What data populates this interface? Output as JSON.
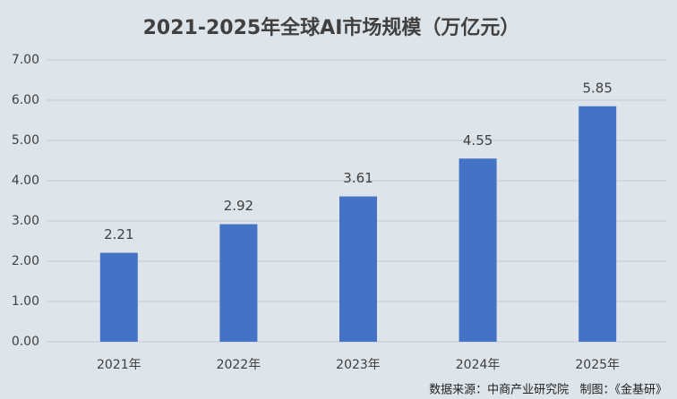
{
  "chart_data": {
    "type": "bar",
    "title": "2021-2025年全球AI市场规模（万亿元）",
    "categories": [
      "2021年",
      "2022年",
      "2023年",
      "2024年",
      "2025年"
    ],
    "values": [
      2.21,
      2.92,
      3.61,
      4.55,
      5.85
    ],
    "color": "#4472c4",
    "ylim": [
      0,
      7
    ],
    "yticks": [
      {
        "value": 0,
        "label": "0.00"
      },
      {
        "value": 1,
        "label": "1.00"
      },
      {
        "value": 2,
        "label": "2.00"
      },
      {
        "value": 3,
        "label": "3.00"
      },
      {
        "value": 4,
        "label": "4.00"
      },
      {
        "value": 5,
        "label": "5.00"
      },
      {
        "value": 6,
        "label": "6.00"
      },
      {
        "value": 7,
        "label": "7.00"
      }
    ],
    "grid": true,
    "data_labels": true,
    "source": "数据来源：中商产业研究院   制图：《金基研》"
  }
}
